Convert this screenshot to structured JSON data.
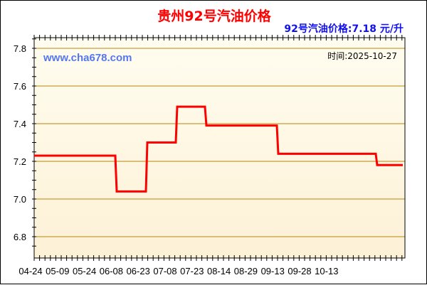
{
  "chart_data": {
    "type": "line",
    "title": "贵州92号汽油价格",
    "subtitle": "92号汽油价格:7.18 元/升",
    "watermark": "www.cha678.com",
    "date_label": "时间:2025-10-27",
    "xlabel": "",
    "ylabel": "",
    "ylim": [
      6.73,
      7.85
    ],
    "yticks": [
      "6.8",
      "7.0",
      "7.2",
      "7.4",
      "7.6",
      "7.8"
    ],
    "xticks": [
      "04-24",
      "05-09",
      "05-24",
      "06-08",
      "06-23",
      "07-08",
      "07-23",
      "08-14",
      "08-29",
      "09-13",
      "09-28",
      "10-13"
    ],
    "grid": true,
    "step": true,
    "series": [
      {
        "color": "#ff0000",
        "points": [
          {
            "date": "04-24",
            "price": 7.23
          },
          {
            "date": "05-24",
            "price": 7.04
          },
          {
            "date": "06-10",
            "price": 7.3
          },
          {
            "date": "06-27",
            "price": 7.49
          },
          {
            "date": "07-13",
            "price": 7.39
          },
          {
            "date": "08-29",
            "price": 7.24
          },
          {
            "date": "10-27",
            "price": 7.18
          }
        ]
      }
    ],
    "colors": {
      "background_top": "#fffdf0",
      "background_bottom": "#fdf1d6",
      "grid": "#b8860b",
      "line": "#ff0000"
    }
  }
}
